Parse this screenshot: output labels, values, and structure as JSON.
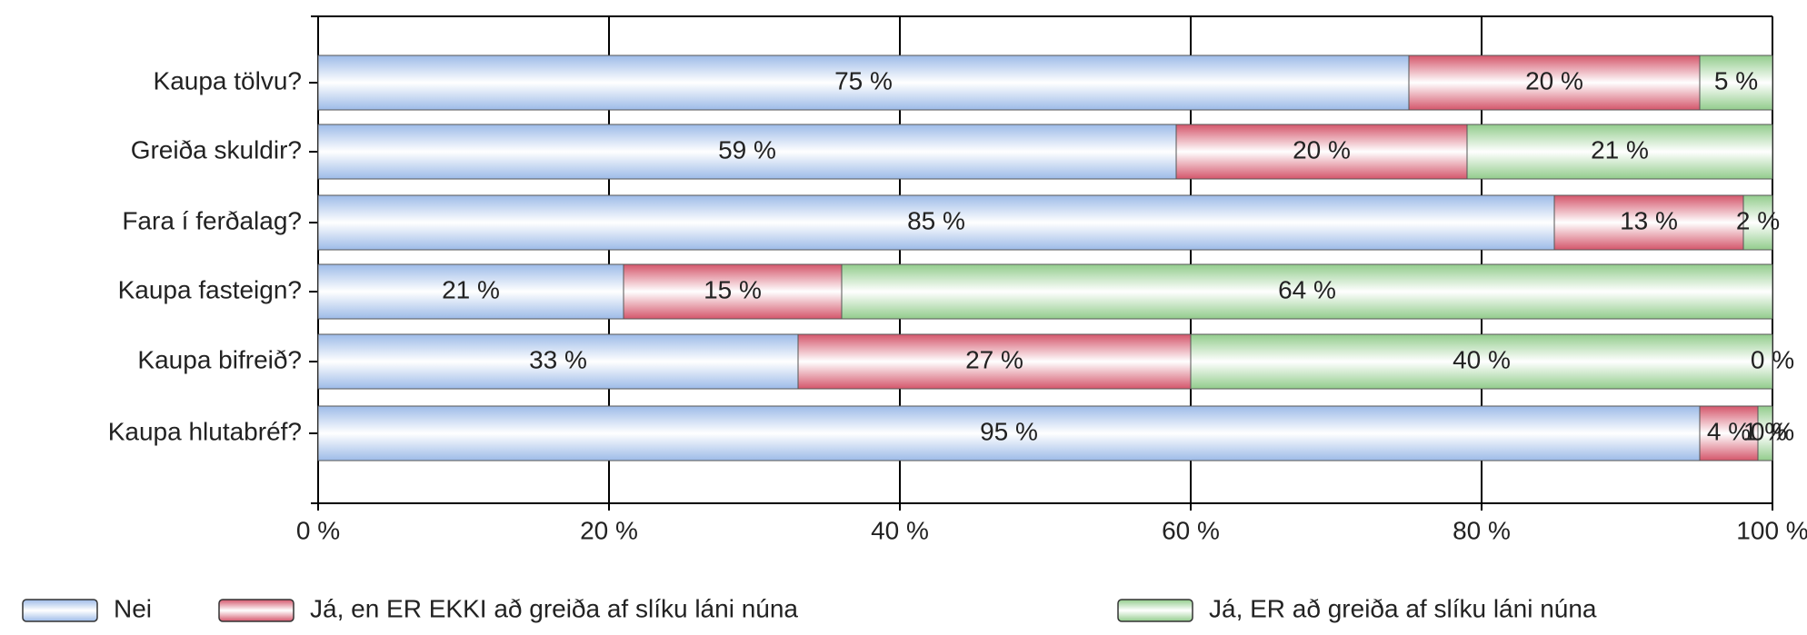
{
  "chart_data": {
    "type": "stacked-barh",
    "categories": [
      "Kaupa tölvu?",
      "Greiða skuldir?",
      "Fara í ferðalag?",
      "Kaupa fasteign?",
      "Kaupa bifreið?",
      "Kaupa hlutabréf?"
    ],
    "series": [
      {
        "name": "Nei",
        "color": "#9dbbe8",
        "values": [
          75,
          59,
          85,
          21,
          33,
          95
        ],
        "value_labels": [
          "75 %",
          "59 %",
          "85 %",
          "21 %",
          "33 %",
          "95 %"
        ]
      },
      {
        "name": "Já, en ER EKKI að greiða af slíku láni núna",
        "color": "#d4566b",
        "values": [
          20,
          20,
          13,
          15,
          27,
          4
        ],
        "value_labels": [
          "20 %",
          "20 %",
          "13 %",
          "15 %",
          "27 %",
          "4 %"
        ]
      },
      {
        "name": "Já, ER að greiða af slíku láni núna",
        "color": "#92cc8c",
        "values": [
          5,
          21,
          2,
          64,
          40,
          1
        ],
        "value_labels": [
          "5 %",
          "21 %",
          "2 %",
          "64 %",
          "40 %",
          "1 %"
        ]
      },
      {
        "values": [
          null,
          null,
          null,
          null,
          0,
          0
        ],
        "value_labels": [
          null,
          null,
          null,
          null,
          "0 %",
          "0 %"
        ]
      }
    ],
    "xlim": [
      0,
      100
    ],
    "xticks": [
      {
        "value": 0,
        "label": "0 %"
      },
      {
        "value": 20,
        "label": "20 %"
      },
      {
        "value": 40,
        "label": "40 %"
      },
      {
        "value": 60,
        "label": "60 %"
      },
      {
        "value": 80,
        "label": "80 %"
      },
      {
        "value": 100,
        "label": "100 %"
      }
    ],
    "grid": true
  }
}
